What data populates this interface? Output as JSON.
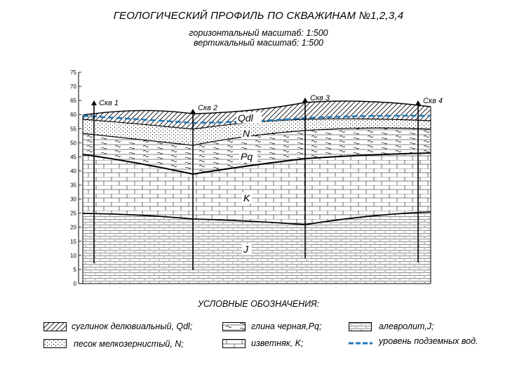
{
  "title": "ГЕОЛОГИЧЕСКИЙ ПРОФИЛЬ ПО СКВАЖИНАМ №1,2,3,4",
  "scale_horizontal": "горизонтальный масштаб: 1:500",
  "scale_vertical": "вертикальный масштаб: 1:500",
  "axis": {
    "ticks": [
      "0",
      "5",
      "10",
      "15",
      "20",
      "25",
      "30",
      "35",
      "40",
      "45",
      "50",
      "55",
      "60",
      "65",
      "70",
      "75"
    ]
  },
  "wells": [
    {
      "label": "Скв 1"
    },
    {
      "label": "Скв 2"
    },
    {
      "label": "Скв 3"
    },
    {
      "label": "Скв 4"
    }
  ],
  "layer_labels": {
    "qdl": "Qdl",
    "n": "N",
    "pq": "Pq",
    "k": "K",
    "j": "J"
  },
  "legend": {
    "title": "УСЛОВНЫЕ ОБОЗНАЧЕНИЯ:",
    "items": [
      {
        "label": "суглинок делювиальный, Qdl;"
      },
      {
        "label": "песок мелкозернистый, N;"
      },
      {
        "label": "глина черная,Pq;"
      },
      {
        "label": "изветняк, K;"
      },
      {
        "label": "алевролит,J;"
      },
      {
        "label": "уровень подземных вод."
      }
    ]
  },
  "colors": {
    "water_level": "#1f7ab8",
    "lines": "#000000"
  }
}
